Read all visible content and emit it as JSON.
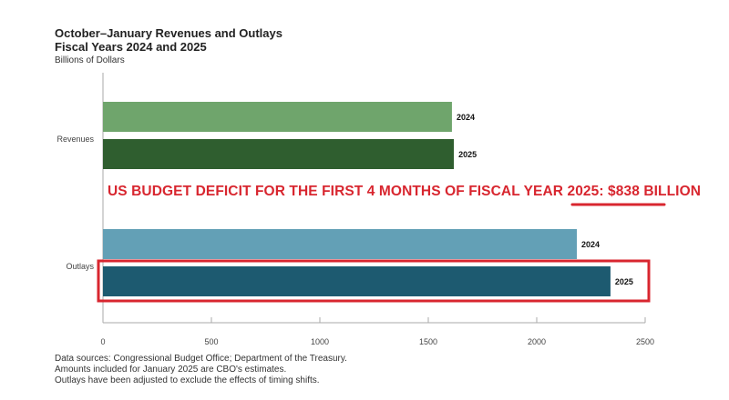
{
  "chart_data": {
    "type": "bar",
    "orientation": "horizontal",
    "title": "October–January Revenues and Outlays",
    "subtitle": "Fiscal Years 2024 and 2025",
    "unit_label": "Billions of Dollars",
    "categories": [
      "Revenues",
      "Outlays"
    ],
    "series": [
      {
        "name": "2024",
        "values": [
          1609,
          2185
        ],
        "colors": [
          "#6fa56c",
          "#63a0b6"
        ]
      },
      {
        "name": "2025",
        "values": [
          1618,
          2340
        ],
        "colors": [
          "#2f5e2f",
          "#1d5a70"
        ]
      }
    ],
    "xlim": [
      0,
      2500
    ],
    "xticks": [
      "0",
      "500",
      "1000",
      "1500",
      "2000",
      "2500"
    ],
    "grid": false,
    "annotation": {
      "text": "US BUDGET DEFICIT FOR THE FIRST 4 MONTHS OF FISCAL YEAR 2025: ",
      "highlight": "$838 BILLION",
      "color": "#d8262f"
    },
    "highlighted_bar": "Outlays 2025",
    "notes": [
      "Data sources: Congressional Budget Office; Department of the Treasury.",
      "Amounts included for January 2025 are CBO's estimates.",
      "Outlays have been adjusted to exclude the effects of timing shifts."
    ]
  }
}
